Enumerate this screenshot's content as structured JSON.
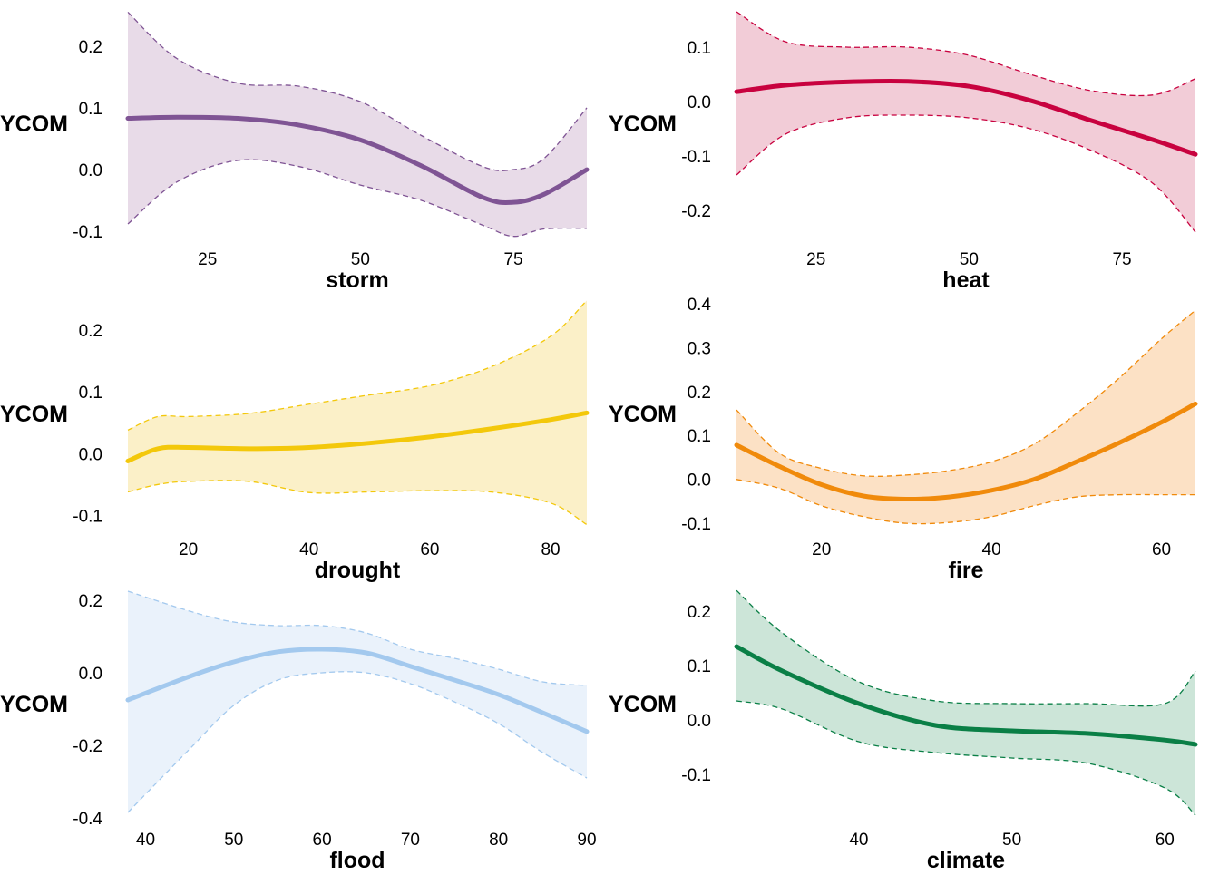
{
  "chart_data": [
    {
      "type": "line",
      "xlabel": "storm",
      "ylabel": "YCOM",
      "color": "#7f5494",
      "fill": "#e8dbe8",
      "xlim": [
        12,
        87
      ],
      "ylim": [
        -0.11,
        0.26
      ],
      "xticks": [
        25,
        50,
        75
      ],
      "yticks": [
        -0.1,
        0.0,
        0.1,
        0.2
      ],
      "ytick_labels": [
        "-0.1",
        "0.0",
        "0.1",
        "0.2"
      ],
      "x": [
        12,
        20,
        30,
        40,
        50,
        60,
        70,
        75,
        80,
        87
      ],
      "fit": [
        0.083,
        0.085,
        0.083,
        0.072,
        0.048,
        0.006,
        -0.045,
        -0.053,
        -0.04,
        0.0
      ],
      "lower": [
        -0.088,
        -0.02,
        0.015,
        0.005,
        -0.025,
        -0.05,
        -0.09,
        -0.108,
        -0.096,
        -0.095
      ],
      "upper": [
        0.255,
        0.18,
        0.14,
        0.135,
        0.11,
        0.055,
        0.005,
        0.0,
        0.018,
        0.1
      ]
    },
    {
      "type": "line",
      "xlabel": "heat",
      "ylabel": "YCOM",
      "color": "#c8023f",
      "fill": "#f2ccd7",
      "xlim": [
        12,
        87
      ],
      "ylim": [
        -0.25,
        0.17
      ],
      "xticks": [
        25,
        50,
        75
      ],
      "yticks": [
        -0.2,
        -0.1,
        0.0,
        0.1
      ],
      "ytick_labels": [
        "-0.2",
        "-0.1",
        "0.0",
        "0.1"
      ],
      "x": [
        12,
        20,
        30,
        40,
        50,
        60,
        70,
        80,
        87
      ],
      "fit": [
        0.018,
        0.03,
        0.036,
        0.037,
        0.028,
        0.002,
        -0.035,
        -0.07,
        -0.097
      ],
      "lower": [
        -0.135,
        -0.06,
        -0.03,
        -0.025,
        -0.03,
        -0.05,
        -0.09,
        -0.15,
        -0.24
      ],
      "upper": [
        0.165,
        0.11,
        0.1,
        0.1,
        0.085,
        0.05,
        0.02,
        0.012,
        0.042
      ]
    },
    {
      "type": "line",
      "xlabel": "drought",
      "ylabel": "YCOM",
      "color": "#f3c80b",
      "fill": "#fbf0c8",
      "xlim": [
        10,
        86
      ],
      "ylim": [
        -0.12,
        0.25
      ],
      "xticks": [
        20,
        40,
        60,
        80
      ],
      "yticks": [
        -0.1,
        0.0,
        0.1,
        0.2
      ],
      "ytick_labels": [
        "-0.1",
        "0.0",
        "0.1",
        "0.2"
      ],
      "x": [
        10,
        15,
        20,
        30,
        40,
        50,
        60,
        70,
        80,
        86
      ],
      "fit": [
        -0.012,
        0.008,
        0.01,
        0.008,
        0.01,
        0.017,
        0.027,
        0.04,
        0.055,
        0.066
      ],
      "lower": [
        -0.062,
        -0.05,
        -0.045,
        -0.045,
        -0.063,
        -0.062,
        -0.06,
        -0.062,
        -0.08,
        -0.115
      ],
      "upper": [
        0.038,
        0.06,
        0.06,
        0.065,
        0.08,
        0.095,
        0.11,
        0.14,
        0.19,
        0.248
      ]
    },
    {
      "type": "line",
      "xlabel": "fire",
      "ylabel": "YCOM",
      "color": "#f08a0b",
      "fill": "#fce1c5",
      "xlim": [
        10,
        64
      ],
      "ylim": [
        -0.11,
        0.41
      ],
      "xticks": [
        20,
        40,
        60
      ],
      "yticks": [
        -0.1,
        0.0,
        0.1,
        0.2,
        0.3,
        0.4
      ],
      "ytick_labels": [
        "-0.1",
        "0.0",
        "0.1",
        "0.2",
        "0.3",
        "0.4"
      ],
      "x": [
        10,
        15,
        20,
        25,
        30,
        35,
        40,
        45,
        50,
        55,
        60,
        64
      ],
      "fit": [
        0.078,
        0.03,
        -0.012,
        -0.038,
        -0.045,
        -0.04,
        -0.025,
        0.0,
        0.04,
        0.083,
        0.13,
        0.172
      ],
      "lower": [
        0.0,
        -0.02,
        -0.06,
        -0.085,
        -0.1,
        -0.098,
        -0.085,
        -0.06,
        -0.04,
        -0.035,
        -0.035,
        -0.035
      ],
      "upper": [
        0.158,
        0.06,
        0.025,
        0.008,
        0.01,
        0.02,
        0.04,
        0.08,
        0.15,
        0.23,
        0.32,
        0.385
      ]
    },
    {
      "type": "line",
      "xlabel": "flood",
      "ylabel": "YCOM",
      "color": "#a3c9ee",
      "fill": "#eaf2fb",
      "xlim": [
        38,
        90
      ],
      "ylim": [
        -0.4,
        0.23
      ],
      "xticks": [
        40,
        50,
        60,
        70,
        80,
        90
      ],
      "yticks": [
        -0.4,
        -0.2,
        0.0,
        0.2
      ],
      "ytick_labels": [
        "-0.4",
        "-0.2",
        "0.0",
        "0.2"
      ],
      "x": [
        38,
        45,
        50,
        55,
        60,
        65,
        70,
        75,
        80,
        85,
        90
      ],
      "fit": [
        -0.075,
        -0.01,
        0.03,
        0.058,
        0.065,
        0.055,
        0.018,
        -0.02,
        -0.06,
        -0.11,
        -0.162
      ],
      "lower": [
        -0.385,
        -0.21,
        -0.09,
        -0.02,
        0.0,
        0.0,
        -0.03,
        -0.08,
        -0.14,
        -0.22,
        -0.29
      ],
      "upper": [
        0.225,
        0.17,
        0.14,
        0.13,
        0.13,
        0.11,
        0.065,
        0.04,
        0.01,
        -0.025,
        -0.035
      ]
    },
    {
      "type": "line",
      "xlabel": "climate",
      "ylabel": "YCOM",
      "color": "#0a7f46",
      "fill": "#cce5d8",
      "xlim": [
        32,
        62
      ],
      "ylim": [
        -0.18,
        0.24
      ],
      "xticks": [
        40,
        50,
        60
      ],
      "yticks": [
        -0.1,
        0.0,
        0.1,
        0.2
      ],
      "ytick_labels": [
        "-0.1",
        "0.0",
        "0.1",
        "0.2"
      ],
      "x": [
        32,
        35,
        40,
        45,
        50,
        55,
        60,
        62
      ],
      "fit": [
        0.135,
        0.09,
        0.03,
        -0.01,
        -0.02,
        -0.025,
        -0.037,
        -0.045
      ],
      "lower": [
        0.035,
        0.02,
        -0.04,
        -0.06,
        -0.07,
        -0.08,
        -0.125,
        -0.175
      ],
      "upper": [
        0.238,
        0.16,
        0.07,
        0.035,
        0.03,
        0.03,
        0.03,
        0.09
      ]
    }
  ]
}
